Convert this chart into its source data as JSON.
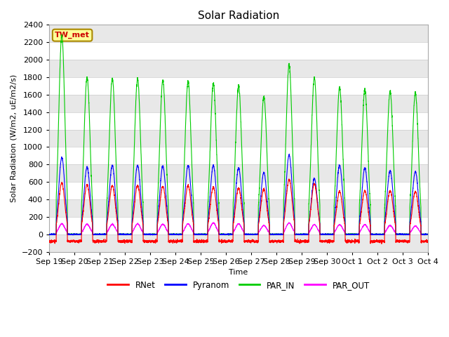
{
  "title": "Solar Radiation",
  "ylabel": "Solar Radiation (W/m2, uE/m2/s)",
  "xlabel": "Time",
  "ylim": [
    -200,
    2400
  ],
  "yticks": [
    -200,
    0,
    200,
    400,
    600,
    800,
    1000,
    1200,
    1400,
    1600,
    1800,
    2000,
    2200,
    2400
  ],
  "xtick_labels": [
    "Sep 19",
    "Sep 20",
    "Sep 21",
    "Sep 22",
    "Sep 23",
    "Sep 24",
    "Sep 25",
    "Sep 26",
    "Sep 27",
    "Sep 28",
    "Sep 29",
    "Sep 30",
    "Oct 1",
    "Oct 2",
    "Oct 3",
    "Oct 4"
  ],
  "station_label": "TW_met",
  "legend_entries": [
    "RNet",
    "Pyranom",
    "PAR_IN",
    "PAR_OUT"
  ],
  "line_colors": [
    "#ff0000",
    "#0000ff",
    "#00cc00",
    "#ff00ff"
  ],
  "background_color": "#ffffff",
  "plot_bg_color": "#ffffff",
  "band_color": "#e8e8e8",
  "grid_line_color": "#cccccc",
  "title_fontsize": 11,
  "label_fontsize": 8,
  "tick_fontsize": 8,
  "day_peaks_par": [
    2280,
    1800,
    1790,
    1780,
    1760,
    1750,
    1730,
    1700,
    1580,
    1950,
    1790,
    1680,
    1660,
    1640,
    1620
  ],
  "day_peaks_pyr": [
    880,
    770,
    790,
    790,
    780,
    790,
    790,
    760,
    710,
    910,
    640,
    790,
    760,
    730,
    720
  ],
  "day_peaks_rnet": [
    590,
    570,
    560,
    560,
    550,
    560,
    540,
    530,
    520,
    630,
    580,
    490,
    500,
    500,
    490
  ],
  "day_peaks_parout": [
    120,
    115,
    115,
    120,
    115,
    120,
    130,
    120,
    100,
    130,
    110,
    110,
    110,
    100,
    95
  ]
}
